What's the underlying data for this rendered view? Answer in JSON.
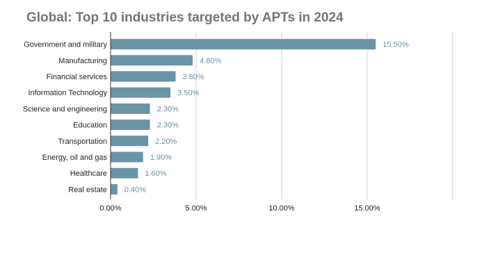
{
  "chart_data": {
    "type": "bar",
    "orientation": "horizontal",
    "title": "Global: Top 10 industries targeted by APTs in 2024",
    "categories": [
      "Government and military",
      "Manufacturing",
      "Financial services",
      "Information Technology",
      "Science and engineering",
      "Education",
      "Transportation",
      "Energy, oil and gas",
      "Healthcare",
      "Real estate"
    ],
    "values": [
      15.5,
      4.8,
      3.8,
      3.5,
      2.3,
      2.3,
      2.2,
      1.9,
      1.6,
      0.4
    ],
    "value_labels": [
      "15.50%",
      "4.80%",
      "3.80%",
      "3.50%",
      "2.30%",
      "2.30%",
      "2.20%",
      "1.90%",
      "1.60%",
      "0.40%"
    ],
    "xlim": [
      0,
      20
    ],
    "x_ticks": [
      0,
      5,
      10,
      15
    ],
    "x_tick_labels": [
      "0.00%",
      "5.00%",
      "10.00%",
      "15.00%"
    ],
    "grid": "vertical",
    "legend": "none",
    "colors": {
      "bar": "#6a93a6",
      "value_label": "#6a93a6",
      "grid": "#d0d0d0",
      "axis": "#333333"
    }
  }
}
